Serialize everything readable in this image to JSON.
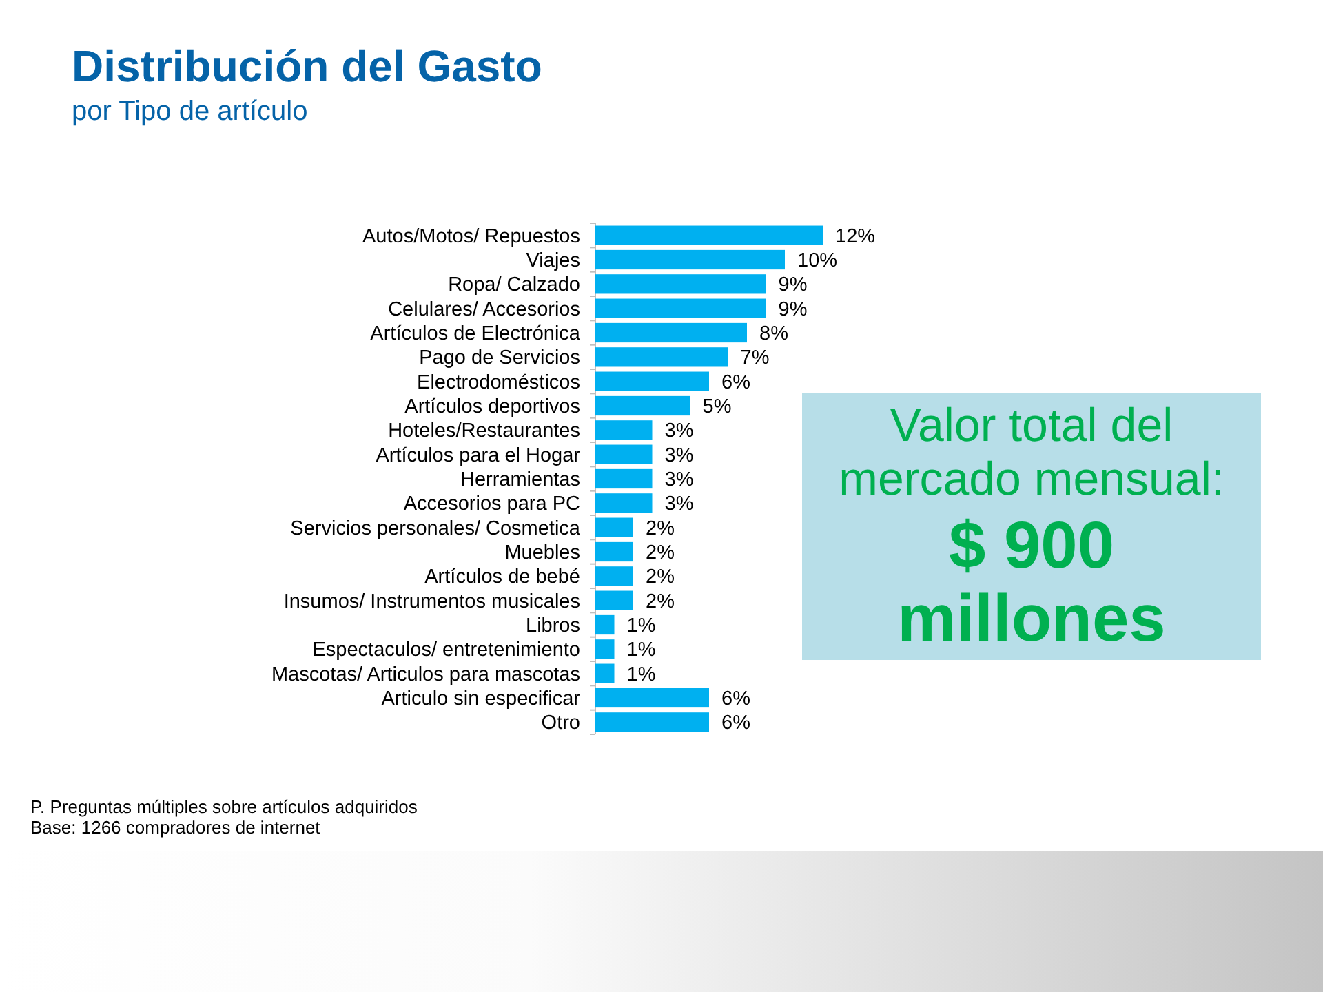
{
  "chart_data": {
    "type": "bar",
    "orientation": "horizontal",
    "title": "Distribución del Gasto",
    "subtitle": "por Tipo de artículo",
    "categories": [
      "Autos/Motos/ Repuestos",
      "Viajes",
      "Ropa/ Calzado",
      "Celulares/ Accesorios",
      "Artículos de Electrónica",
      "Pago de Servicios",
      "Electrodomésticos",
      "Artículos deportivos",
      "Hoteles/Restaurantes",
      "Artículos para el Hogar",
      "Herramientas",
      "Accesorios para PC",
      "Servicios personales/ Cosmetica",
      "Muebles",
      "Artículos de bebé",
      "Insumos/ Instrumentos musicales",
      "Libros",
      "Espectaculos/ entretenimiento",
      "Mascotas/ Articulos para mascotas",
      "Articulo sin especificar",
      "Otro"
    ],
    "values": [
      12,
      10,
      9,
      9,
      8,
      7,
      6,
      5,
      3,
      3,
      3,
      3,
      2,
      2,
      2,
      2,
      1,
      1,
      1,
      6,
      6
    ],
    "color": "#00b0f0",
    "value_labels": [
      "12%",
      "10%",
      "9%",
      "9%",
      "8%",
      "7%",
      "6%",
      "5%",
      "3%",
      "3%",
      "3%",
      "3%",
      "2%",
      "2%",
      "2%",
      "2%",
      "1%",
      "1%",
      "1%",
      "6%",
      "6%"
    ],
    "annotations": [
      "Valor total del mercado mensual:",
      "$ 900 millones",
      "P. Preguntas múltiples sobre artículos adquiridos",
      "Base: 1266 compradores de internet"
    ]
  }
}
